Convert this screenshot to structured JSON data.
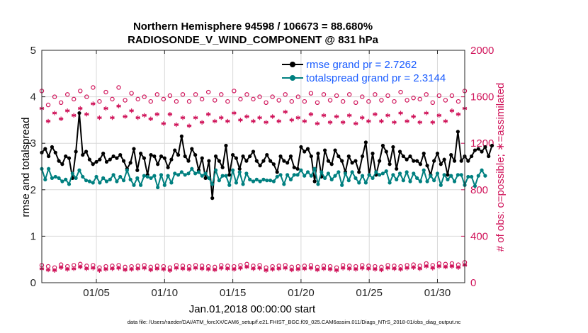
{
  "chart_data": {
    "type": "line",
    "title_line1": "Northern Hemisphere 94598 / 106673 = 88.680%",
    "title_line2": "RADIOSONDE_V_WIND_COMPONENT @ 831 hPa",
    "xlabel": "Jan.01,2018 00:00:00 start",
    "ylabel_left": "rmse and totalspread",
    "ylabel_right": "# of obs: o=possible; ∗=assimilated",
    "x_ticks": [
      "01/05",
      "01/10",
      "01/15",
      "01/20",
      "01/25",
      "01/30"
    ],
    "x_tick_days": [
      5,
      10,
      15,
      20,
      25,
      30
    ],
    "xlim": [
      1,
      32
    ],
    "ylim_left": [
      0,
      5
    ],
    "yticks_left": [
      "0",
      "1",
      "2",
      "3",
      "4",
      "5"
    ],
    "ylim_right": [
      0,
      2000
    ],
    "yticks_right": [
      "0",
      "400",
      "800",
      "1200",
      "1600",
      "2000"
    ],
    "x_step_days": 0.25,
    "legend": [
      {
        "label": "rmse grand pr = 2.7262",
        "color": "#000000"
      },
      {
        "label": "totalspread grand pr = 2.3144",
        "color": "#008080"
      }
    ],
    "series": [
      {
        "name": "rmse",
        "axis": "left",
        "color": "#000000",
        "values": [
          2.8,
          2.88,
          2.72,
          2.92,
          2.8,
          2.62,
          2.55,
          2.72,
          2.68,
          2.25,
          2.82,
          3.65,
          2.75,
          2.82,
          2.65,
          2.55,
          2.6,
          2.65,
          2.78,
          2.6,
          2.65,
          2.72,
          2.68,
          2.75,
          2.62,
          2.45,
          2.58,
          2.88,
          2.42,
          2.78,
          2.68,
          2.32,
          2.75,
          2.72,
          2.55,
          2.72,
          2.68,
          2.48,
          2.65,
          2.85,
          2.75,
          3.15,
          2.72,
          2.62,
          2.88,
          2.75,
          2.42,
          2.68,
          2.25,
          2.62,
          1.82,
          2.72,
          2.62,
          2.48,
          2.95,
          2.32,
          2.75,
          2.68,
          2.45,
          2.72,
          2.62,
          2.72,
          2.82,
          2.62,
          2.52,
          2.62,
          2.75,
          2.62,
          2.55,
          2.38,
          2.72,
          2.62,
          2.58,
          2.72,
          2.48,
          2.45,
          2.92,
          2.82,
          2.88,
          2.72,
          2.18,
          2.78,
          2.28,
          2.85,
          2.62,
          2.55,
          2.85,
          2.72,
          2.62,
          2.38,
          2.72,
          2.58,
          2.62,
          2.38,
          2.72,
          3.02,
          2.32,
          2.78,
          2.32,
          2.62,
          2.95,
          2.82,
          2.55,
          2.92,
          2.45,
          2.82,
          2.72,
          2.65,
          2.72,
          2.62,
          2.62,
          2.55,
          2.78,
          2.52,
          2.32,
          2.62,
          2.78,
          2.55,
          2.65,
          2.32,
          2.75,
          2.62,
          3.25,
          2.62,
          2.72,
          2.62,
          2.72,
          2.85,
          2.88,
          2.82,
          2.92,
          2.72,
          2.95
        ]
      },
      {
        "name": "totalspread",
        "axis": "left",
        "color": "#008080",
        "values": [
          2.45,
          2.22,
          2.45,
          2.25,
          2.28,
          2.25,
          2.18,
          2.22,
          2.12,
          2.35,
          2.25,
          2.42,
          2.28,
          2.2,
          2.18,
          2.15,
          2.28,
          2.15,
          2.25,
          2.18,
          2.22,
          2.32,
          2.18,
          2.28,
          2.2,
          2.42,
          2.22,
          2.1,
          2.25,
          2.1,
          2.3,
          2.28,
          2.25,
          2.3,
          2.05,
          2.32,
          2.1,
          2.3,
          2.15,
          2.35,
          2.32,
          2.38,
          2.32,
          2.35,
          2.45,
          2.35,
          2.38,
          2.3,
          2.35,
          2.25,
          2.12,
          2.42,
          2.2,
          2.3,
          2.3,
          2.1,
          2.42,
          2.15,
          2.38,
          2.12,
          2.35,
          2.22,
          2.18,
          2.22,
          2.18,
          2.22,
          2.2,
          2.2,
          2.18,
          2.28,
          2.32,
          2.12,
          2.32,
          2.22,
          2.32,
          2.32,
          2.42,
          2.3,
          2.38,
          2.3,
          2.45,
          2.12,
          2.38,
          2.25,
          2.35,
          2.22,
          2.3,
          2.38,
          2.1,
          2.35,
          2.2,
          2.38,
          2.25,
          2.15,
          2.3,
          2.15,
          2.32,
          2.25,
          2.38,
          2.32,
          2.35,
          2.4,
          2.15,
          2.32,
          2.22,
          2.35,
          2.2,
          2.38,
          2.18,
          2.35,
          2.25,
          2.18,
          2.42,
          2.18,
          2.3,
          2.2,
          2.35,
          2.1,
          2.32,
          2.22,
          2.3,
          2.18,
          2.32,
          2.32,
          2.1,
          2.28,
          2.28,
          2.08,
          2.3,
          2.42,
          2.3
        ]
      },
      {
        "name": "possible (day-side)",
        "axis": "right",
        "marker": "circle",
        "color": "#d0145a",
        "values": [
          1650,
          1530,
          1600,
          1550,
          1620,
          1580,
          1650,
          1600,
          1680,
          1560,
          1640,
          1580,
          1680,
          1570,
          1630,
          1580,
          1600,
          1560,
          1620,
          1580,
          1610,
          1560,
          1620,
          1560,
          1620,
          1580,
          1640,
          1570,
          1620,
          1560,
          1650,
          1580,
          1620,
          1580,
          1600,
          1550,
          1600,
          1570,
          1620,
          1560,
          1600,
          1560,
          1630,
          1550,
          1620,
          1570,
          1610,
          1560,
          1620,
          1550,
          1600,
          1560,
          1620,
          1570,
          1610,
          1560,
          1640,
          1570,
          1590,
          1580,
          1620,
          1550,
          1610,
          1570,
          1610,
          1560,
          1650
        ]
      },
      {
        "name": "possible (night-side)",
        "axis": "right",
        "marker": "circle",
        "color": "#d0145a",
        "values": [
          150,
          140,
          130,
          155,
          140,
          150,
          160,
          145,
          150,
          130,
          140,
          145,
          150,
          135,
          140,
          145,
          150,
          135,
          145,
          140,
          130,
          150,
          145,
          140,
          150,
          145,
          140,
          135,
          150,
          145,
          140,
          150,
          160,
          145,
          150,
          130,
          140,
          145,
          150,
          135,
          140,
          145,
          150,
          135,
          145,
          140,
          130,
          150,
          145,
          140,
          150,
          145,
          140,
          135,
          150,
          145,
          140,
          150,
          155,
          145,
          165,
          150,
          165,
          160,
          165,
          155,
          175
        ]
      },
      {
        "name": "assimilated (day-side)",
        "axis": "right",
        "marker": "asterisk",
        "color": "#d0145a",
        "values": [
          1500,
          1390,
          1460,
          1410,
          1480,
          1440,
          1500,
          1450,
          1540,
          1420,
          1500,
          1420,
          1520,
          1430,
          1480,
          1420,
          1440,
          1410,
          1450,
          1370,
          1450,
          1360,
          1420,
          1350,
          1420,
          1380,
          1450,
          1390,
          1420,
          1390,
          1460,
          1400,
          1430,
          1390,
          1420,
          1380,
          1430,
          1390,
          1470,
          1400,
          1420,
          1390,
          1450,
          1370,
          1440,
          1380,
          1430,
          1380,
          1440,
          1370,
          1420,
          1390,
          1450,
          1390,
          1440,
          1380,
          1460,
          1390,
          1430,
          1380,
          1460,
          1380,
          1440,
          1390,
          1480,
          1450,
          1500
        ]
      },
      {
        "name": "assimilated (night-side)",
        "axis": "right",
        "marker": "asterisk",
        "color": "#d0145a",
        "values": [
          120,
          110,
          105,
          130,
          115,
          120,
          135,
          120,
          125,
          105,
          115,
          120,
          125,
          110,
          115,
          120,
          125,
          110,
          120,
          115,
          105,
          125,
          120,
          115,
          125,
          120,
          115,
          110,
          125,
          120,
          115,
          125,
          135,
          120,
          125,
          105,
          115,
          120,
          125,
          110,
          115,
          120,
          125,
          110,
          120,
          115,
          105,
          125,
          120,
          115,
          125,
          120,
          115,
          110,
          125,
          120,
          115,
          125,
          130,
          120,
          140,
          125,
          140,
          135,
          140,
          130,
          150
        ]
      }
    ]
  },
  "footer_text": "data file: /Users/raeder/DAI/ATM_forcXX/CAM6_setup/f.e21.FHIST_BGC.f09_025.CAM6assim.011/Diags_NTrS_2018-01/obs_diag_output.nc"
}
